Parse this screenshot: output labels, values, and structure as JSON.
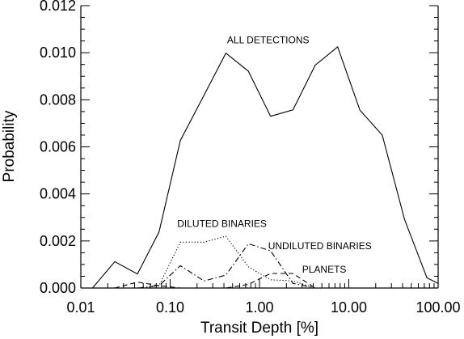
{
  "chart_data": {
    "type": "line",
    "xlabel": "Transit Depth [%]",
    "ylabel": "Probability",
    "xscale": "log",
    "xlim": [
      0.01,
      100
    ],
    "ylim": [
      0,
      0.012
    ],
    "xticks": [
      {
        "value": 0.01,
        "label": "0.01"
      },
      {
        "value": 0.1,
        "label": "0.10"
      },
      {
        "value": 1,
        "label": "1.00"
      },
      {
        "value": 10,
        "label": "10.00"
      },
      {
        "value": 100,
        "label": "100.00"
      }
    ],
    "yticks": [
      {
        "value": 0,
        "label": "0.000"
      },
      {
        "value": 0.002,
        "label": "0.002"
      },
      {
        "value": 0.004,
        "label": "0.004"
      },
      {
        "value": 0.006,
        "label": "0.006"
      },
      {
        "value": 0.008,
        "label": "0.008"
      },
      {
        "value": 0.01,
        "label": "0.010"
      },
      {
        "value": 0.012,
        "label": "0.012"
      }
    ],
    "series": [
      {
        "name": "ALL DETECTIONS",
        "style": "solid",
        "x": [
          0.0135,
          0.024,
          0.043,
          0.075,
          0.13,
          0.24,
          0.42,
          0.75,
          1.33,
          2.37,
          4.2,
          7.5,
          13.3,
          23.7,
          42,
          75,
          100
        ],
        "y": [
          0.0,
          0.00112,
          0.0006,
          0.00238,
          0.00627,
          0.0082,
          0.00998,
          0.00922,
          0.0073,
          0.00757,
          0.00947,
          0.01025,
          0.00756,
          0.0065,
          0.00292,
          0.00043,
          0.0002
        ]
      },
      {
        "name": "DILUTED BINARIES",
        "style": "dotted",
        "x": [
          0.05,
          0.075,
          0.13,
          0.24,
          0.42,
          0.75,
          1.33,
          2.37,
          4.2
        ],
        "y": [
          0.0,
          0.0001,
          0.00195,
          0.00195,
          0.0022,
          0.0009,
          0.00035,
          0.0003,
          0.0
        ]
      },
      {
        "name": "UNDILUTED BINARIES",
        "style": "dashdot",
        "x": [
          0.024,
          0.043,
          0.075,
          0.13,
          0.24,
          0.42,
          0.75,
          1.33,
          2.37,
          4.2
        ],
        "y": [
          0.0,
          0.0,
          0.0001,
          0.00095,
          0.0003,
          0.00055,
          0.00188,
          0.00158,
          0.0002,
          0.0
        ]
      },
      {
        "name": "PLANETS",
        "style": "dashed",
        "x": [
          0.024,
          0.043,
          0.075,
          0.13,
          0.24,
          0.42,
          0.75,
          1.33,
          2.37,
          4.2
        ],
        "y": [
          0.0,
          0.00025,
          0.0001,
          0.0,
          0.0,
          0.0,
          0.00015,
          0.00062,
          0.00062,
          0.0
        ]
      }
    ],
    "annotations": [
      {
        "text": "ALL DETECTIONS",
        "x": 1.25,
        "y": 0.0104,
        "anchor": "middle"
      },
      {
        "text": "DILUTED BINARIES",
        "x": 0.12,
        "y": 0.0026,
        "anchor": "start"
      },
      {
        "text": "UNDILUTED BINARIES",
        "x": 1.25,
        "y": 0.00165,
        "anchor": "start"
      },
      {
        "text": "PLANETS",
        "x": 3.0,
        "y": 0.00065,
        "anchor": "start"
      }
    ]
  }
}
